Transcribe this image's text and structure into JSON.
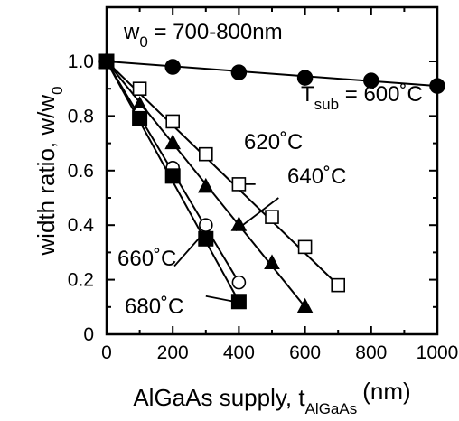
{
  "chart_data": {
    "type": "scatter",
    "xlim": [
      0,
      1000
    ],
    "ylim": [
      0,
      1.0
    ],
    "x_ticks": [
      "0",
      "200",
      "400",
      "600",
      "800",
      "1000"
    ],
    "y_ticks": [
      "0",
      "0.2",
      "0.4",
      "0.6",
      "0.8",
      "1.0"
    ],
    "xlabel": "AlGaAs supply, t",
    "xlabel_sub": "AlGaAs",
    "xlabel_unit": "(nm)",
    "ylabel": "width ratio, w/w",
    "ylabel_sub": "0",
    "grid": false,
    "series": [
      {
        "name": "600˚C",
        "marker": "filled-circle",
        "fit": [
          [
            0,
            1.0
          ],
          [
            1000,
            0.91
          ]
        ],
        "points": [
          [
            0,
            1.0
          ],
          [
            200,
            0.98
          ],
          [
            400,
            0.96
          ],
          [
            600,
            0.94
          ],
          [
            800,
            0.93
          ],
          [
            1000,
            0.91
          ]
        ]
      },
      {
        "name": "620˚C",
        "marker": "open-square",
        "fit": [
          [
            0,
            1.0
          ],
          [
            700,
            0.18
          ]
        ],
        "points": [
          [
            0,
            1.0
          ],
          [
            100,
            0.9
          ],
          [
            200,
            0.78
          ],
          [
            300,
            0.66
          ],
          [
            400,
            0.55
          ],
          [
            500,
            0.43
          ],
          [
            600,
            0.32
          ],
          [
            700,
            0.18
          ]
        ]
      },
      {
        "name": "640˚C",
        "marker": "filled-triangle",
        "fit": [
          [
            0,
            1.0
          ],
          [
            600,
            0.1
          ]
        ],
        "points": [
          [
            0,
            1.0
          ],
          [
            100,
            0.84
          ],
          [
            200,
            0.7
          ],
          [
            300,
            0.54
          ],
          [
            400,
            0.4
          ],
          [
            500,
            0.26
          ],
          [
            600,
            0.1
          ]
        ]
      },
      {
        "name": "660˚C",
        "marker": "open-circle",
        "fit": [
          [
            0,
            1.0
          ],
          [
            400,
            0.19
          ]
        ],
        "points": [
          [
            0,
            1.0
          ],
          [
            100,
            0.81
          ],
          [
            200,
            0.61
          ],
          [
            300,
            0.4
          ],
          [
            400,
            0.19
          ]
        ]
      },
      {
        "name": "680˚C",
        "marker": "filled-square",
        "fit": [
          [
            0,
            1.0
          ],
          [
            400,
            0.12
          ]
        ],
        "points": [
          [
            0,
            1.0
          ],
          [
            100,
            0.79
          ],
          [
            200,
            0.58
          ],
          [
            300,
            0.35
          ],
          [
            400,
            0.12
          ]
        ]
      }
    ],
    "annotations": {
      "w0_label": "w",
      "w0_sub": "0",
      "w0_value": " = 700-800nm",
      "tsub_label": "T",
      "tsub_sub": "sub",
      "tsub_value": " = 600˚C",
      "t620": "620˚C",
      "t640": "640˚C",
      "t660": "660˚C",
      "t680": "680˚C"
    }
  }
}
